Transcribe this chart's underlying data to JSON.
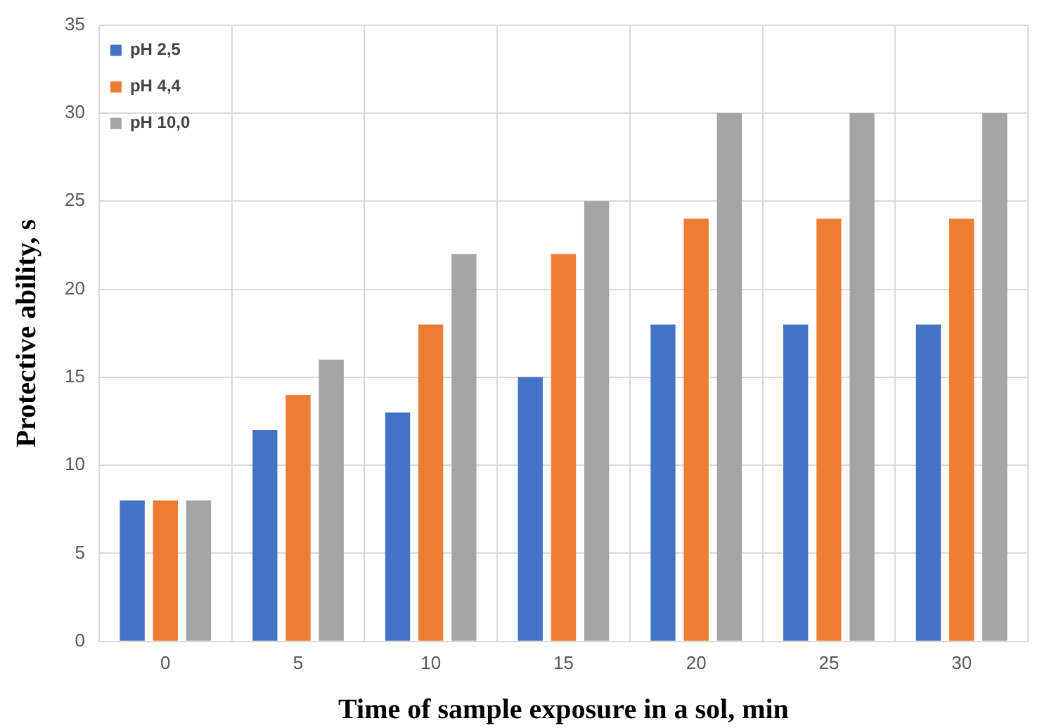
{
  "chart_data": {
    "type": "bar",
    "xlabel": "Time of sample exposure in a sol, min",
    "ylabel": "Protective ability, s",
    "categories": [
      "0",
      "5",
      "10",
      "15",
      "20",
      "25",
      "30"
    ],
    "series": [
      {
        "name": "pH 2,5",
        "color": "#4472c4",
        "values": [
          8,
          12,
          13,
          15,
          18,
          18,
          18
        ]
      },
      {
        "name": "pH 4,4",
        "color": "#ed7d31",
        "values": [
          8,
          14,
          18,
          22,
          24,
          24,
          24
        ]
      },
      {
        "name": "pH 10,0",
        "color": "#a5a5a5",
        "values": [
          8,
          16,
          22,
          25,
          30,
          30,
          30
        ]
      }
    ],
    "ylim": [
      0,
      35
    ],
    "yticks": [
      0,
      5,
      10,
      15,
      20,
      25,
      30,
      35
    ],
    "grid": true,
    "legend": "top left"
  }
}
